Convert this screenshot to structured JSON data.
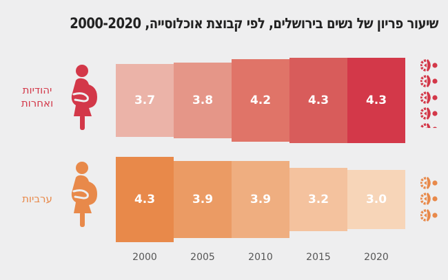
{
  "title": "שיעור פריון של נשים בירושלים, לפי קבוצת אוכלוסייה, 2000-2020",
  "chart_data": {
    "type": "bar",
    "title": "שיעור פריון של נשים בירושלים, לפי קבוצת אוכלוסייה, 2000-2020",
    "xlabel": "",
    "ylabel": "",
    "categories": [
      "2000",
      "2005",
      "2010",
      "2015",
      "2020"
    ],
    "series": [
      {
        "name": "יהודיות ואחרות",
        "label_lines": [
          "יהודיות",
          "ואחרות"
        ],
        "values": [
          3.7,
          3.8,
          4.2,
          4.3,
          4.3
        ],
        "value_labels": [
          "3.7",
          "3.8",
          "4.2",
          "4.3",
          "4.3"
        ],
        "colors": [
          "#ebb3a8",
          "#e59688",
          "#e07468",
          "#d85c5b",
          "#d33849"
        ],
        "accent": "#d33849",
        "baby_icons": 4.3
      },
      {
        "name": "ערביות",
        "label_lines": [
          "ערביות"
        ],
        "values": [
          4.3,
          3.9,
          3.9,
          3.2,
          3.0
        ],
        "value_labels": [
          "4.3",
          "3.9",
          "3.9",
          "3.2",
          "3.0"
        ],
        "colors": [
          "#e8894a",
          "#eb9b64",
          "#efae80",
          "#f4c29e",
          "#f7d5b8"
        ],
        "accent": "#e8894a",
        "baby_icons": 3.0
      }
    ],
    "grid": false,
    "legend": "left"
  }
}
